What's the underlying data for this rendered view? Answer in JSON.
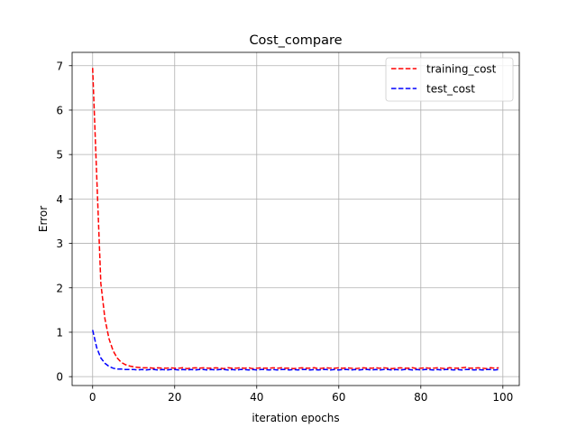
{
  "chart_data": {
    "type": "line",
    "title": "Cost_compare",
    "xlabel": "iteration epochs",
    "ylabel": "Error",
    "xlim": [
      -5,
      104
    ],
    "ylim": [
      -0.2,
      7.3
    ],
    "xticks": [
      0,
      20,
      40,
      60,
      80,
      100
    ],
    "yticks": [
      0,
      1,
      2,
      3,
      4,
      5,
      6,
      7
    ],
    "grid": true,
    "legend_position": "top-right",
    "series": [
      {
        "name": "training_cost",
        "color": "#ff0000",
        "linestyle": "dashed",
        "x": [
          0,
          1,
          2,
          3,
          4,
          5,
          6,
          7,
          8,
          9,
          10,
          11,
          12,
          13,
          14,
          15,
          16,
          17,
          18,
          19,
          20,
          21,
          22,
          23,
          24,
          25,
          26,
          27,
          28,
          29,
          30,
          31,
          32,
          33,
          34,
          35,
          36,
          37,
          38,
          39,
          40,
          41,
          42,
          43,
          44,
          45,
          46,
          47,
          48,
          49,
          50,
          51,
          52,
          53,
          54,
          55,
          56,
          57,
          58,
          59,
          60,
          61,
          62,
          63,
          64,
          65,
          66,
          67,
          68,
          69,
          70,
          71,
          72,
          73,
          74,
          75,
          76,
          77,
          78,
          79,
          80,
          81,
          82,
          83,
          84,
          85,
          86,
          87,
          88,
          89,
          90,
          91,
          92,
          93,
          94,
          95,
          96,
          97,
          98,
          99
        ],
        "y": [
          6.95,
          4.5,
          2.1,
          1.3,
          0.85,
          0.58,
          0.42,
          0.32,
          0.27,
          0.24,
          0.22,
          0.21,
          0.2,
          0.2,
          0.2,
          0.19,
          0.2,
          0.19,
          0.19,
          0.2,
          0.19,
          0.19,
          0.2,
          0.18,
          0.19,
          0.2,
          0.19,
          0.2,
          0.19,
          0.19,
          0.2,
          0.19,
          0.18,
          0.2,
          0.19,
          0.19,
          0.2,
          0.19,
          0.2,
          0.18,
          0.19,
          0.2,
          0.19,
          0.19,
          0.2,
          0.19,
          0.2,
          0.19,
          0.19,
          0.18,
          0.19,
          0.2,
          0.19,
          0.19,
          0.2,
          0.18,
          0.19,
          0.2,
          0.19,
          0.19,
          0.2,
          0.19,
          0.2,
          0.19,
          0.18,
          0.19,
          0.2,
          0.19,
          0.19,
          0.2,
          0.19,
          0.2,
          0.19,
          0.18,
          0.19,
          0.2,
          0.19,
          0.19,
          0.2,
          0.18,
          0.19,
          0.2,
          0.19,
          0.19,
          0.2,
          0.19,
          0.18,
          0.2,
          0.19,
          0.19,
          0.2,
          0.21,
          0.19,
          0.19,
          0.2,
          0.19,
          0.18,
          0.2,
          0.19,
          0.2
        ]
      },
      {
        "name": "test_cost",
        "color": "#0000ff",
        "linestyle": "dashed",
        "x": [
          0,
          1,
          2,
          3,
          4,
          5,
          6,
          7,
          8,
          9,
          10,
          11,
          12,
          13,
          14,
          15,
          16,
          17,
          18,
          19,
          20,
          21,
          22,
          23,
          24,
          25,
          26,
          27,
          28,
          29,
          30,
          31,
          32,
          33,
          34,
          35,
          36,
          37,
          38,
          39,
          40,
          41,
          42,
          43,
          44,
          45,
          46,
          47,
          48,
          49,
          50,
          51,
          52,
          53,
          54,
          55,
          56,
          57,
          58,
          59,
          60,
          61,
          62,
          63,
          64,
          65,
          66,
          67,
          68,
          69,
          70,
          71,
          72,
          73,
          74,
          75,
          76,
          77,
          78,
          79,
          80,
          81,
          82,
          83,
          84,
          85,
          86,
          87,
          88,
          89,
          90,
          91,
          92,
          93,
          94,
          95,
          96,
          97,
          98,
          99
        ],
        "y": [
          1.05,
          0.65,
          0.42,
          0.3,
          0.23,
          0.19,
          0.17,
          0.17,
          0.16,
          0.16,
          0.16,
          0.15,
          0.16,
          0.15,
          0.16,
          0.16,
          0.15,
          0.16,
          0.15,
          0.16,
          0.16,
          0.15,
          0.16,
          0.15,
          0.16,
          0.15,
          0.16,
          0.16,
          0.15,
          0.16,
          0.15,
          0.16,
          0.16,
          0.15,
          0.16,
          0.15,
          0.16,
          0.16,
          0.15,
          0.16,
          0.15,
          0.16,
          0.16,
          0.15,
          0.16,
          0.15,
          0.16,
          0.16,
          0.15,
          0.16,
          0.15,
          0.16,
          0.16,
          0.15,
          0.16,
          0.15,
          0.16,
          0.16,
          0.15,
          0.16,
          0.15,
          0.16,
          0.16,
          0.15,
          0.16,
          0.15,
          0.16,
          0.16,
          0.15,
          0.16,
          0.15,
          0.16,
          0.16,
          0.15,
          0.16,
          0.15,
          0.16,
          0.16,
          0.15,
          0.16,
          0.15,
          0.16,
          0.16,
          0.15,
          0.16,
          0.15,
          0.16,
          0.16,
          0.15,
          0.16,
          0.15,
          0.16,
          0.16,
          0.15,
          0.16,
          0.15,
          0.16,
          0.16,
          0.15,
          0.16
        ]
      }
    ]
  }
}
